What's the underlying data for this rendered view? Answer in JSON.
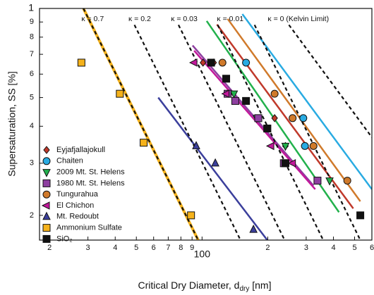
{
  "chart_data": {
    "type": "scatter",
    "x_scale": "log",
    "y_scale": "log",
    "x_label": "Critical Dry Diameter, d",
    "x_label_sub": "dry",
    "x_label_end": " [nm]",
    "y_label": "Supersaturation, SS [%]",
    "xlim": [
      18,
      600
    ],
    "ylim": [
      1.65,
      10
    ],
    "xticks": [
      {
        "value": 20,
        "label": "2"
      },
      {
        "value": 30,
        "label": "3"
      },
      {
        "value": 40,
        "label": "4"
      },
      {
        "value": 50,
        "label": "5"
      },
      {
        "value": 60,
        "label": "6"
      },
      {
        "value": 70,
        "label": "7"
      },
      {
        "value": 80,
        "label": "8"
      },
      {
        "value": 90,
        "label": "9"
      },
      100,
      {
        "value": 200,
        "label": "2"
      },
      {
        "value": 300,
        "label": "3"
      },
      {
        "value": 400,
        "label": "4"
      },
      {
        "value": 500,
        "label": "5"
      },
      {
        "value": 600,
        "label": "6"
      }
    ],
    "yticks": [
      2,
      3,
      4,
      5,
      6,
      7,
      8,
      9,
      {
        "value": 10,
        "label": "1"
      }
    ],
    "annotations": [
      {
        "text": "κ = 0.7",
        "x": 28,
        "y": 9.2
      },
      {
        "text": "κ = 0.2",
        "x": 46,
        "y": 9.2
      },
      {
        "text": "κ = 0.03",
        "x": 72,
        "y": 9.2
      },
      {
        "text": "κ = 0.01",
        "x": 117,
        "y": 9.2
      },
      {
        "text": "κ = 0 (Kelvin Limit)",
        "x": 200,
        "y": 9.2
      }
    ],
    "reference_lines": [
      {
        "x": [
          28.6,
          96
        ],
        "y": [
          10,
          1.65
        ]
      },
      {
        "x": [
          49,
          150
        ],
        "y": [
          8.8,
          1.65
        ]
      },
      {
        "x": [
          78,
          239
        ],
        "y": [
          8.8,
          1.65
        ]
      },
      {
        "x": [
          118,
          359
        ],
        "y": [
          8.8,
          1.65
        ]
      },
      {
        "x": [
          174,
          531
        ],
        "y": [
          8.8,
          1.65
        ]
      },
      {
        "x": [
          250,
          600
        ],
        "y": [
          8.8,
          3.67
        ]
      }
    ],
    "series": [
      {
        "name": "Eyjafjallajokull",
        "color": "#c0392b",
        "marker": "diamond",
        "x": [
          101,
          113,
          215,
          241
        ],
        "values": [
          6.56,
          6.56,
          4.26,
          3.43
        ],
        "fit_x": [
          117,
          493
        ],
        "fit_y": [
          8.83,
          2.11
        ]
      },
      {
        "name": "Chaiten",
        "color": "#29abe2",
        "marker": "circle",
        "x": [
          159,
          291,
          296
        ],
        "values": [
          6.56,
          4.26,
          3.43
        ],
        "fit_x": [
          153,
          600
        ],
        "fit_y": [
          9.57,
          2.45
        ]
      },
      {
        "name": "2009 Mt. St. Helens",
        "color": "#22b14c",
        "marker": "tridown",
        "x": [
          140,
          178,
          241,
          384
        ],
        "values": [
          5.15,
          4.26,
          3.43,
          2.62
        ],
        "fit_x": [
          105,
          424
        ],
        "fit_y": [
          9.07,
          2.05
        ]
      },
      {
        "name": "1980 Mt. St. Helens",
        "color": "#8e3fa0",
        "marker": "square",
        "x": [
          131,
          142,
          181,
          199,
          237,
          338
        ],
        "values": [
          5.15,
          4.87,
          4.26,
          3.93,
          3.0,
          2.62
        ],
        "fit_x": [
          90.5,
          324
        ],
        "fit_y": [
          7.5,
          2.52
        ]
      },
      {
        "name": "Tungurahua",
        "color": "#d07a2b",
        "marker": "circle",
        "x": [
          124,
          215,
          260,
          324,
          463
        ],
        "values": [
          6.56,
          5.15,
          4.26,
          3.43,
          2.62
        ],
        "fit_x": [
          131,
          531
        ],
        "fit_y": [
          9.22,
          2.23
        ]
      },
      {
        "name": "El Chichon",
        "color": "#c2189b",
        "marker": "trileft",
        "x": [
          92,
          129,
          207,
          260
        ],
        "values": [
          6.56,
          5.15,
          3.43,
          3.0
        ],
        "fit_x": [
          92,
          330
        ],
        "fit_y": [
          7.2,
          2.45
        ]
      },
      {
        "name": "Mt. Redoubt",
        "color": "#3b3f9c",
        "marker": "triup",
        "x": [
          94,
          115,
          172
        ],
        "values": [
          3.43,
          3.0,
          1.79
        ],
        "fit_x": [
          63,
          199
        ],
        "fit_y": [
          5.0,
          1.65
        ]
      },
      {
        "name": "Ammonium Sulfate",
        "color": "#f5b21b",
        "marker": "square",
        "x": [
          28,
          42,
          54,
          89
        ],
        "values": [
          6.56,
          5.15,
          3.52,
          2.0
        ],
        "fit_x": [
          28.6,
          96
        ],
        "fit_y": [
          10,
          1.65
        ]
      },
      {
        "name": "SiO₂",
        "color": "#111111",
        "marker": "square",
        "x": [
          110,
          129,
          159,
          199,
          241,
          531
        ],
        "values": [
          6.56,
          5.79,
          4.87,
          3.93,
          3.0,
          2.0
        ]
      }
    ]
  }
}
